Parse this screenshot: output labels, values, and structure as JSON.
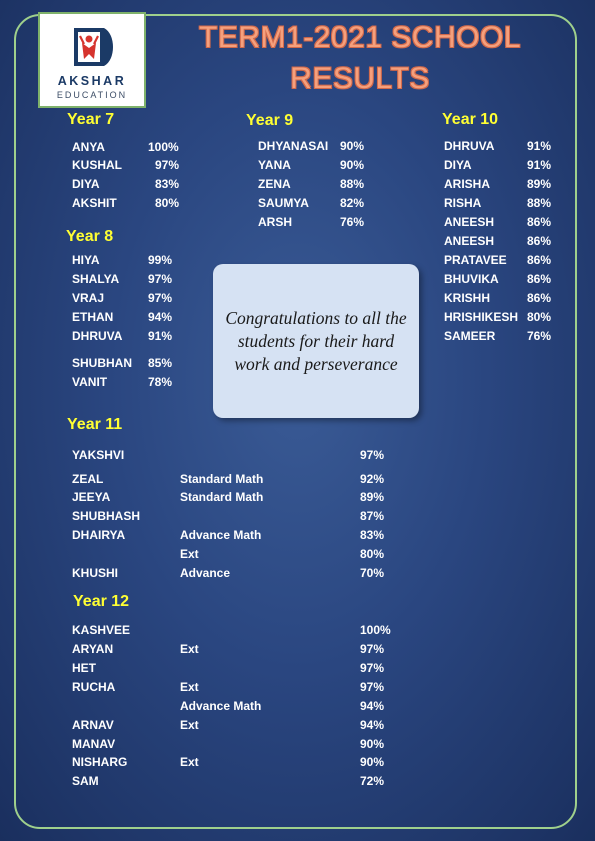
{
  "header": {
    "logo": {
      "name": "AKSHAR",
      "subtitle": "EDUCATION"
    },
    "title_line1": "TERM1-2021 SCHOOL",
    "title_line2": "RESULTS"
  },
  "colors": {
    "background": "#2a4680",
    "frame_border": "#9fd08c",
    "title": "#f5a07d",
    "heading": "#ffff33",
    "text": "#ffffff",
    "callout_bg": "#d6e2f3"
  },
  "message": "Congratulations to all the students for their hard work and perseverance",
  "year7": {
    "heading": "Year 7",
    "students": [
      {
        "name": "ANYA",
        "score": "100%"
      },
      {
        "name": "KUSHAL",
        "score": "97%"
      },
      {
        "name": "DIYA",
        "score": "83%"
      },
      {
        "name": "AKSHIT",
        "score": "80%"
      }
    ]
  },
  "year8": {
    "heading": "Year 8",
    "students": [
      {
        "name": "HIYA",
        "score": "99%"
      },
      {
        "name": "SHALYA",
        "score": "97%"
      },
      {
        "name": "VRAJ",
        "score": "97%"
      },
      {
        "name": "ETHAN",
        "score": "94%"
      },
      {
        "name": "DHRUVA",
        "score": "91%"
      },
      {
        "name": "SHUBHAN",
        "score": "85%"
      },
      {
        "name": "VANIT",
        "score": "78%"
      }
    ]
  },
  "year9": {
    "heading": "Year 9",
    "students": [
      {
        "name": "DHYANASAI",
        "score": "90%"
      },
      {
        "name": "YANA",
        "score": "90%"
      },
      {
        "name": "ZENA",
        "score": "88%"
      },
      {
        "name": "SAUMYA",
        "score": "82%"
      },
      {
        "name": "ARSH",
        "score": "76%"
      }
    ]
  },
  "year10": {
    "heading": "Year 10",
    "students": [
      {
        "name": "DHRUVA",
        "score": "91%"
      },
      {
        "name": "DIYA",
        "score": "91%"
      },
      {
        "name": "ARISHA",
        "score": "89%"
      },
      {
        "name": "RISHA",
        "score": "88%"
      },
      {
        "name": "ANEESH",
        "score": "86%"
      },
      {
        "name": "ANEESH",
        "score": "86%"
      },
      {
        "name": "PRATAVEE",
        "score": "86%"
      },
      {
        "name": "BHUVIKA",
        "score": "86%"
      },
      {
        "name": "KRISHH",
        "score": "86%"
      },
      {
        "name": "HRISHIKESH",
        "score": "80%"
      },
      {
        "name": "SAMEER",
        "score": "76%"
      }
    ]
  },
  "year11": {
    "heading": "Year 11",
    "rows": [
      {
        "name": "YAKSHVI",
        "subject": "",
        "score": "97%"
      },
      {
        "name": "ZEAL",
        "subject": "Standard Math",
        "score": "92%"
      },
      {
        "name": "JEEYA",
        "subject": "Standard Math",
        "score": "89%"
      },
      {
        "name": "SHUBHASH",
        "subject": "",
        "score": "87%"
      },
      {
        "name": "DHAIRYA",
        "subject": "Advance Math",
        "score": "83%"
      },
      {
        "name": "",
        "subject": "Ext",
        "score": "80%"
      },
      {
        "name": "KHUSHI",
        "subject": "Advance",
        "score": "70%"
      }
    ]
  },
  "year12": {
    "heading": "Year 12",
    "rows": [
      {
        "name": "KASHVEE",
        "subject": "",
        "score": "100%"
      },
      {
        "name": "ARYAN",
        "subject": "Ext",
        "score": "97%"
      },
      {
        "name": "HET",
        "subject": "",
        "score": "97%"
      },
      {
        "name": "RUCHA",
        "subject": "Ext",
        "score": "97%"
      },
      {
        "name": "",
        "subject": "Advance Math",
        "score": "94%"
      },
      {
        "name": "ARNAV",
        "subject": "Ext",
        "score": "94%"
      },
      {
        "name": "MANAV",
        "subject": "",
        "score": "90%"
      },
      {
        "name": "NISHARG",
        "subject": "Ext",
        "score": "90%"
      },
      {
        "name": "SAM",
        "subject": "",
        "score": "72%"
      }
    ]
  }
}
